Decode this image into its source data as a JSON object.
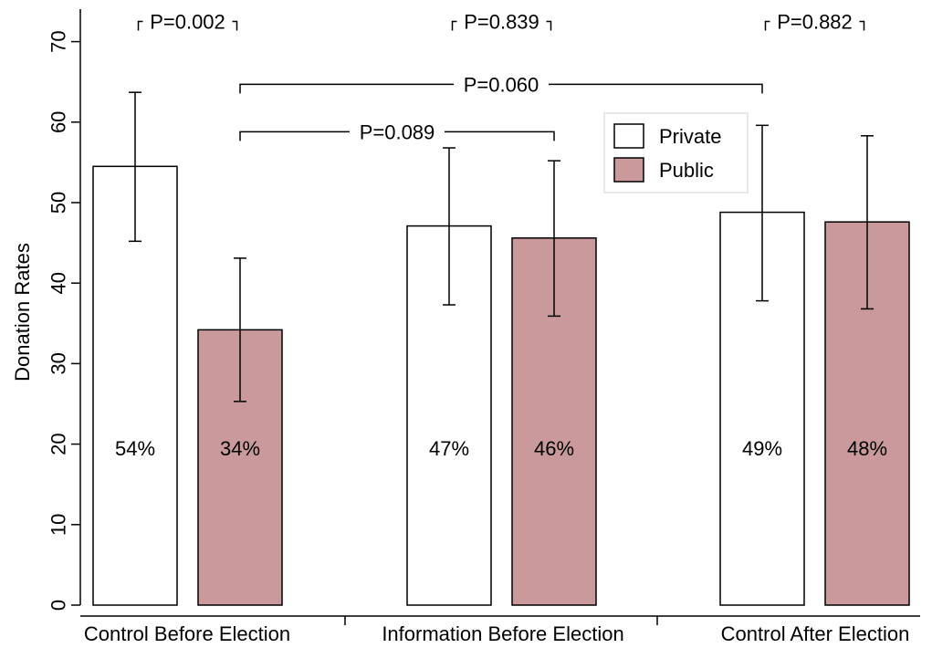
{
  "chart_data": {
    "type": "bar",
    "title": "",
    "ylabel": "Donation Rates",
    "xlabel": "",
    "ylim": [
      0,
      75
    ],
    "yticks": [
      0,
      10,
      20,
      30,
      40,
      50,
      60,
      70
    ],
    "grid": false,
    "legend_position": "upper-right, inside plot",
    "categories": [
      "Control Before Election",
      "Information Before Election",
      "Control After Election"
    ],
    "series": [
      {
        "name": "Private",
        "color": "#ffffff",
        "values": [
          54.5,
          47.1,
          48.8
        ],
        "error_low": [
          45.2,
          37.3,
          37.8
        ],
        "error_high": [
          63.7,
          56.8,
          59.6
        ],
        "labels": [
          "54%",
          "47%",
          "49%"
        ]
      },
      {
        "name": "Public",
        "color": "#c9999c",
        "values": [
          34.2,
          45.6,
          47.6
        ],
        "error_low": [
          25.3,
          35.9,
          36.8
        ],
        "error_high": [
          43.1,
          55.2,
          58.3
        ],
        "labels": [
          "34%",
          "46%",
          "48%"
        ]
      }
    ],
    "annotations": [
      {
        "text": "P=0.002",
        "style": "top",
        "from": {
          "category": 0,
          "series": 0
        },
        "to": {
          "category": 0,
          "series": 1
        },
        "y": 72.5
      },
      {
        "text": "P=0.839",
        "style": "top",
        "from": {
          "category": 1,
          "series": 0
        },
        "to": {
          "category": 1,
          "series": 1
        },
        "y": 72.5
      },
      {
        "text": "P=0.882",
        "style": "top",
        "from": {
          "category": 2,
          "series": 0
        },
        "to": {
          "category": 2,
          "series": 1
        },
        "y": 72.5
      },
      {
        "text": "P=0.060",
        "style": "bracket",
        "from": {
          "category": 0,
          "series": 1
        },
        "to": {
          "category": 2,
          "series": 0
        },
        "y": 64.7
      },
      {
        "text": "P=0.089",
        "style": "bracket",
        "from": {
          "category": 0,
          "series": 1
        },
        "to": {
          "category": 1,
          "series": 1
        },
        "y": 58.8
      }
    ]
  }
}
